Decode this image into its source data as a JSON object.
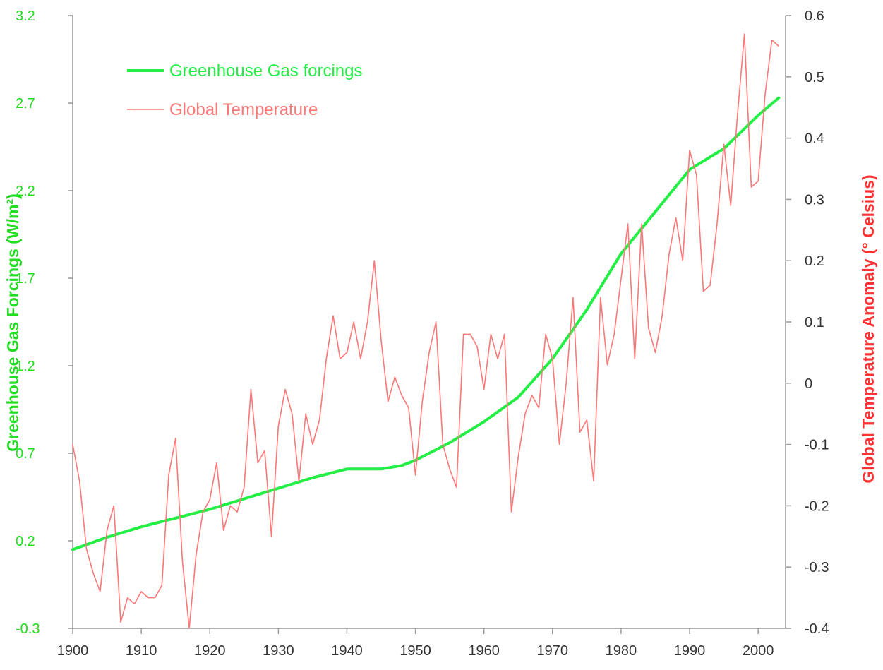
{
  "chart_data": {
    "type": "line",
    "title": "",
    "xlabel": "",
    "ylabel": "Greenhouse Gas Forcings (W/m²)",
    "ylabel_right": "Global Temperature Anomaly (° Celsius)",
    "xlim": [
      1900,
      2004
    ],
    "ylim": [
      -0.3,
      3.2
    ],
    "ylim_right": [
      -0.4,
      0.6
    ],
    "x_ticks": [
      "1900",
      "1910",
      "1920",
      "1930",
      "1940",
      "1950",
      "1960",
      "1970",
      "1980",
      "1990",
      "2000"
    ],
    "y_ticks_left": [
      "3.2",
      "2.7",
      "2.2",
      "1.7",
      "1.2",
      "0.7",
      "0.2",
      "-0.3"
    ],
    "y_ticks_right": [
      "0.6",
      "0.5",
      "0.4",
      "0.3",
      "0.2",
      "0.1",
      "0",
      "-0.1",
      "-0.2",
      "-0.3",
      "-0.4"
    ],
    "legend_position": "top-left",
    "grid": false,
    "series": [
      {
        "name": "Greenhouse Gas forcings",
        "axis": "left",
        "color": "#22ee44",
        "x": [
          1900,
          1905,
          1910,
          1913,
          1915,
          1920,
          1925,
          1930,
          1935,
          1940,
          1945,
          1948,
          1950,
          1955,
          1960,
          1965,
          1970,
          1975,
          1980,
          1985,
          1990,
          1995,
          2000,
          2003
        ],
        "y": [
          0.15,
          0.22,
          0.28,
          0.31,
          0.33,
          0.38,
          0.44,
          0.5,
          0.56,
          0.61,
          0.61,
          0.63,
          0.66,
          0.76,
          0.88,
          1.02,
          1.24,
          1.52,
          1.84,
          2.08,
          2.32,
          2.44,
          2.63,
          2.73
        ]
      },
      {
        "name": "Global Temperature",
        "axis": "right",
        "color": "#ff7777",
        "x": [
          1900,
          1901,
          1902,
          1903,
          1904,
          1905,
          1906,
          1907,
          1908,
          1909,
          1910,
          1911,
          1912,
          1913,
          1914,
          1915,
          1916,
          1917,
          1918,
          1919,
          1920,
          1921,
          1922,
          1923,
          1924,
          1925,
          1926,
          1927,
          1928,
          1929,
          1930,
          1931,
          1932,
          1933,
          1934,
          1935,
          1936,
          1937,
          1938,
          1939,
          1940,
          1941,
          1942,
          1943,
          1944,
          1945,
          1946,
          1947,
          1948,
          1949,
          1950,
          1951,
          1952,
          1953,
          1954,
          1955,
          1956,
          1957,
          1958,
          1959,
          1960,
          1961,
          1962,
          1963,
          1964,
          1965,
          1966,
          1967,
          1968,
          1969,
          1970,
          1971,
          1972,
          1973,
          1974,
          1975,
          1976,
          1977,
          1978,
          1979,
          1980,
          1981,
          1982,
          1983,
          1984,
          1985,
          1986,
          1987,
          1988,
          1989,
          1990,
          1991,
          1992,
          1993,
          1994,
          1995,
          1996,
          1997,
          1998,
          1999,
          2000,
          2001,
          2002,
          2003
        ],
        "y": [
          -0.1,
          -0.16,
          -0.27,
          -0.31,
          -0.34,
          -0.24,
          -0.2,
          -0.39,
          -0.35,
          -0.36,
          -0.34,
          -0.35,
          -0.35,
          -0.33,
          -0.15,
          -0.09,
          -0.29,
          -0.4,
          -0.28,
          -0.21,
          -0.19,
          -0.13,
          -0.24,
          -0.2,
          -0.21,
          -0.17,
          -0.01,
          -0.13,
          -0.11,
          -0.25,
          -0.07,
          -0.01,
          -0.05,
          -0.16,
          -0.05,
          -0.1,
          -0.06,
          0.04,
          0.11,
          0.04,
          0.05,
          0.1,
          0.04,
          0.1,
          0.2,
          0.07,
          -0.03,
          0.01,
          -0.02,
          -0.04,
          -0.15,
          -0.03,
          0.05,
          0.1,
          -0.1,
          -0.14,
          -0.17,
          0.08,
          0.08,
          0.06,
          -0.01,
          0.08,
          0.04,
          0.08,
          -0.21,
          -0.12,
          -0.05,
          -0.02,
          -0.04,
          0.08,
          0.04,
          -0.1,
          0.0,
          0.14,
          -0.08,
          -0.06,
          -0.16,
          0.14,
          0.03,
          0.08,
          0.17,
          0.26,
          0.04,
          0.26,
          0.09,
          0.05,
          0.11,
          0.21,
          0.27,
          0.2,
          0.38,
          0.34,
          0.15,
          0.16,
          0.26,
          0.39,
          0.29,
          0.44,
          0.57,
          0.32,
          0.33,
          0.47,
          0.56,
          0.55
        ]
      }
    ]
  }
}
